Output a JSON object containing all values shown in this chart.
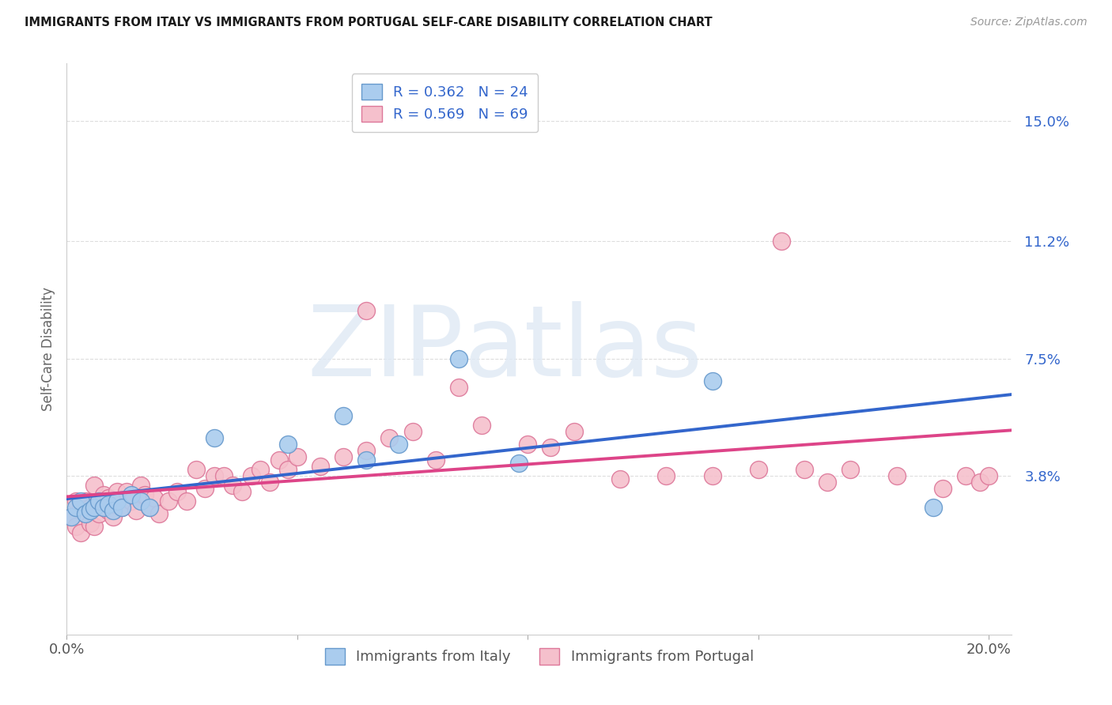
{
  "title": "IMMIGRANTS FROM ITALY VS IMMIGRANTS FROM PORTUGAL SELF-CARE DISABILITY CORRELATION CHART",
  "source": "Source: ZipAtlas.com",
  "ylabel": "Self-Care Disability",
  "xlim": [
    0.0,
    0.205
  ],
  "ylim": [
    -0.012,
    0.168
  ],
  "yticks": [
    0.038,
    0.075,
    0.112,
    0.15
  ],
  "ytick_labels": [
    "3.8%",
    "7.5%",
    "11.2%",
    "15.0%"
  ],
  "xticks": [
    0.0,
    0.05,
    0.1,
    0.15,
    0.2
  ],
  "xtick_labels": [
    "0.0%",
    "",
    "",
    "",
    "20.0%"
  ],
  "italy_color": "#aaccee",
  "italy_edge_color": "#6699cc",
  "portugal_color": "#f5c0cc",
  "portugal_edge_color": "#dd7799",
  "italy_line_color": "#3366cc",
  "portugal_line_color": "#dd4488",
  "legend_italy_label": "R = 0.362   N = 24",
  "legend_portugal_label": "R = 0.569   N = 69",
  "legend_italy_footer": "Immigrants from Italy",
  "legend_portugal_footer": "Immigrants from Portugal",
  "italy_scatter_x": [
    0.001,
    0.002,
    0.003,
    0.004,
    0.005,
    0.006,
    0.007,
    0.008,
    0.009,
    0.01,
    0.011,
    0.012,
    0.014,
    0.016,
    0.018,
    0.032,
    0.048,
    0.06,
    0.065,
    0.072,
    0.085,
    0.098,
    0.14,
    0.188
  ],
  "italy_scatter_y": [
    0.025,
    0.028,
    0.03,
    0.026,
    0.027,
    0.028,
    0.03,
    0.028,
    0.029,
    0.027,
    0.03,
    0.028,
    0.032,
    0.03,
    0.028,
    0.05,
    0.048,
    0.057,
    0.043,
    0.048,
    0.075,
    0.042,
    0.068,
    0.028
  ],
  "portugal_scatter_x": [
    0.001,
    0.002,
    0.002,
    0.003,
    0.003,
    0.004,
    0.004,
    0.005,
    0.005,
    0.006,
    0.006,
    0.007,
    0.007,
    0.008,
    0.008,
    0.009,
    0.009,
    0.01,
    0.01,
    0.011,
    0.012,
    0.013,
    0.014,
    0.015,
    0.016,
    0.017,
    0.018,
    0.019,
    0.02,
    0.022,
    0.024,
    0.026,
    0.028,
    0.03,
    0.032,
    0.034,
    0.036,
    0.038,
    0.04,
    0.042,
    0.044,
    0.046,
    0.048,
    0.05,
    0.055,
    0.06,
    0.065,
    0.07,
    0.075,
    0.08,
    0.085,
    0.09,
    0.1,
    0.105,
    0.11,
    0.12,
    0.13,
    0.14,
    0.15,
    0.155,
    0.16,
    0.165,
    0.17,
    0.18,
    0.19,
    0.195,
    0.198,
    0.2,
    0.065
  ],
  "portugal_scatter_y": [
    0.025,
    0.03,
    0.022,
    0.028,
    0.02,
    0.026,
    0.03,
    0.023,
    0.028,
    0.022,
    0.035,
    0.026,
    0.03,
    0.028,
    0.032,
    0.027,
    0.031,
    0.025,
    0.029,
    0.033,
    0.028,
    0.033,
    0.03,
    0.027,
    0.035,
    0.032,
    0.028,
    0.031,
    0.026,
    0.03,
    0.033,
    0.03,
    0.04,
    0.034,
    0.038,
    0.038,
    0.035,
    0.033,
    0.038,
    0.04,
    0.036,
    0.043,
    0.04,
    0.044,
    0.041,
    0.044,
    0.046,
    0.05,
    0.052,
    0.043,
    0.066,
    0.054,
    0.048,
    0.047,
    0.052,
    0.037,
    0.038,
    0.038,
    0.04,
    0.112,
    0.04,
    0.036,
    0.04,
    0.038,
    0.034,
    0.038,
    0.036,
    0.038,
    0.09
  ],
  "watermark_zip": "ZIP",
  "watermark_atlas": "atlas",
  "background_color": "#ffffff",
  "grid_color": "#dddddd"
}
